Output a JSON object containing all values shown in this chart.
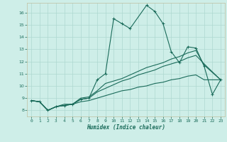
{
  "xlabel": "Humidex (Indice chaleur)",
  "background_color": "#ceeee8",
  "grid_color": "#add8d0",
  "line_color": "#1a6b5a",
  "spine_color": "#c0c0a0",
  "xlim": [
    -0.5,
    23.5
  ],
  "ylim": [
    7.5,
    16.8
  ],
  "xticks": [
    0,
    1,
    2,
    3,
    4,
    5,
    6,
    7,
    8,
    9,
    10,
    11,
    12,
    13,
    14,
    15,
    16,
    17,
    18,
    19,
    20,
    21,
    22,
    23
  ],
  "yticks": [
    8,
    9,
    10,
    11,
    12,
    13,
    14,
    15,
    16
  ],
  "line1_y": [
    8.8,
    8.7,
    8.0,
    8.3,
    8.4,
    8.5,
    8.9,
    9.0,
    10.5,
    11.0,
    15.5,
    15.1,
    14.7,
    16.6,
    16.1,
    15.1,
    12.8,
    11.9,
    13.2,
    13.1,
    11.6,
    9.3,
    10.5
  ],
  "line1_x": [
    0,
    1,
    2,
    3,
    4,
    5,
    6,
    7,
    8,
    9,
    10,
    11,
    12,
    14,
    15,
    16,
    17,
    18,
    19,
    20,
    21,
    22,
    23
  ],
  "line2_y": [
    8.8,
    8.7,
    8.0,
    8.3,
    8.4,
    8.5,
    8.9,
    9.0,
    9.5,
    9.8,
    10.1,
    10.4,
    10.6,
    10.9,
    11.1,
    11.3,
    11.6,
    11.8,
    12.0,
    12.3,
    12.5,
    11.8,
    10.5
  ],
  "line2_x": [
    0,
    1,
    2,
    3,
    4,
    5,
    6,
    7,
    8,
    9,
    10,
    11,
    12,
    13,
    14,
    15,
    16,
    17,
    18,
    19,
    20,
    21,
    23
  ],
  "line3_y": [
    8.8,
    8.7,
    8.0,
    8.3,
    8.5,
    8.5,
    9.0,
    9.1,
    9.6,
    10.2,
    10.4,
    10.6,
    10.9,
    11.2,
    11.5,
    11.7,
    11.9,
    12.2,
    12.4,
    12.7,
    12.9,
    11.7,
    10.5
  ],
  "line3_x": [
    0,
    1,
    2,
    3,
    4,
    5,
    6,
    7,
    8,
    9,
    10,
    11,
    12,
    13,
    14,
    15,
    16,
    17,
    18,
    19,
    20,
    21,
    23
  ],
  "line4_y": [
    8.8,
    8.7,
    8.0,
    8.3,
    8.4,
    8.5,
    8.7,
    8.8,
    9.0,
    9.2,
    9.4,
    9.6,
    9.7,
    9.9,
    10.0,
    10.2,
    10.3,
    10.5,
    10.6,
    10.8,
    10.9,
    10.5,
    10.5
  ],
  "line4_x": [
    0,
    1,
    2,
    3,
    4,
    5,
    6,
    7,
    8,
    9,
    10,
    11,
    12,
    13,
    14,
    15,
    16,
    17,
    18,
    19,
    20,
    21,
    23
  ]
}
